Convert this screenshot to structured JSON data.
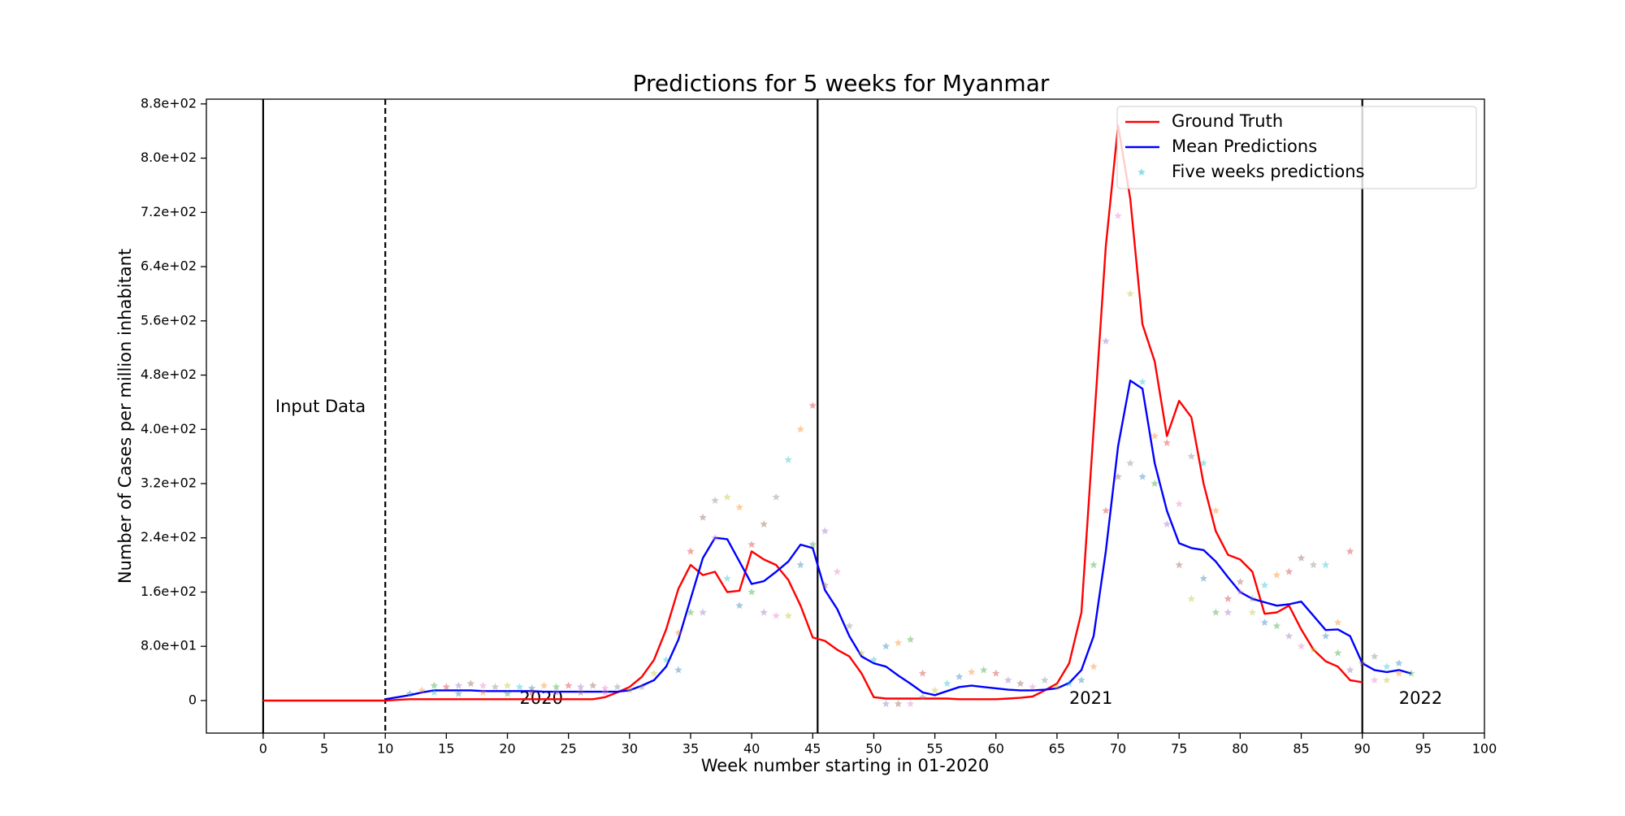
{
  "chart_data": {
    "type": "line",
    "title": "Predictions for 5 weeks for Myanmar",
    "x_label": "Week number starting in 01-2020",
    "y_label": "Number of Cases per million inhabitant",
    "xlim": [
      -4.65,
      100
    ],
    "ylim": [
      -48,
      887
    ],
    "xticks": [
      0,
      5,
      10,
      15,
      20,
      25,
      30,
      35,
      40,
      45,
      50,
      55,
      60,
      65,
      70,
      75,
      80,
      85,
      90,
      95,
      100
    ],
    "yticks": [
      0,
      {
        "value": 80,
        "label": "8.0e+01"
      },
      {
        "value": 160,
        "label": "1.6e+02"
      },
      {
        "value": 240,
        "label": "2.4e+02"
      },
      {
        "value": 320,
        "label": "3.2e+02"
      },
      {
        "value": 400,
        "label": "4.0e+02"
      },
      {
        "value": 480,
        "label": "4.8e+02"
      },
      {
        "value": 560,
        "label": "5.6e+02"
      },
      {
        "value": 640,
        "label": "6.4e+02"
      },
      {
        "value": 720,
        "label": "7.2e+02"
      },
      {
        "value": 800,
        "label": "8.0e+02"
      },
      {
        "value": 880,
        "label": "8.8e+02"
      }
    ],
    "vlines": [
      {
        "x": 0,
        "style": "solid"
      },
      {
        "x": 10,
        "style": "dashed"
      },
      {
        "x": 45.4,
        "style": "solid"
      },
      {
        "x": 90,
        "style": "solid"
      }
    ],
    "annotations": [
      "Input Data",
      "2020",
      "2021",
      "2022"
    ],
    "legend": "upper right",
    "series": [
      {
        "name": "Ground Truth",
        "color": "#ff0000",
        "x": [
          0,
          1,
          2,
          3,
          4,
          5,
          6,
          7,
          8,
          9,
          10,
          11,
          12,
          13,
          14,
          15,
          16,
          17,
          18,
          19,
          20,
          21,
          22,
          23,
          24,
          25,
          26,
          27,
          28,
          29,
          30,
          31,
          32,
          33,
          34,
          35,
          36,
          37,
          38,
          39,
          40,
          41,
          42,
          43,
          44,
          45,
          46,
          47,
          48,
          49,
          50,
          51,
          52,
          53,
          54,
          55,
          56,
          57,
          58,
          59,
          60,
          61,
          62,
          63,
          64,
          65,
          66,
          67,
          68,
          69,
          70,
          71,
          72,
          73,
          74,
          75,
          76,
          77,
          78,
          79,
          80,
          81,
          82,
          83,
          84,
          85,
          86,
          87,
          88,
          89,
          90
        ],
        "values": [
          0,
          0,
          0,
          0,
          0,
          0,
          0,
          0,
          0,
          0,
          0,
          1,
          2,
          2,
          2,
          2,
          2,
          2,
          2,
          2,
          2,
          2,
          2,
          2,
          2,
          2,
          2,
          2,
          5,
          12,
          20,
          35,
          60,
          105,
          165,
          200,
          185,
          190,
          160,
          162,
          220,
          208,
          200,
          178,
          140,
          93,
          88,
          75,
          65,
          40,
          5,
          3,
          3,
          3,
          3,
          3,
          3,
          2,
          2,
          2,
          2,
          3,
          4,
          6,
          15,
          25,
          55,
          130,
          400,
          670,
          848,
          740,
          555,
          500,
          390,
          442,
          418,
          320,
          250,
          215,
          208,
          190,
          128,
          130,
          140,
          105,
          75,
          58,
          50,
          30,
          27
        ]
      },
      {
        "name": "Mean Predictions",
        "color": "#0000ff",
        "x": [
          10,
          11,
          12,
          13,
          14,
          15,
          16,
          17,
          18,
          19,
          20,
          21,
          22,
          23,
          24,
          25,
          26,
          27,
          28,
          29,
          30,
          31,
          32,
          33,
          34,
          35,
          36,
          37,
          38,
          39,
          40,
          41,
          42,
          43,
          44,
          45,
          46,
          47,
          48,
          49,
          50,
          51,
          52,
          53,
          54,
          55,
          56,
          57,
          58,
          59,
          60,
          61,
          62,
          63,
          64,
          65,
          66,
          67,
          68,
          69,
          70,
          71,
          72,
          73,
          74,
          75,
          76,
          77,
          78,
          79,
          80,
          81,
          82,
          83,
          84,
          85,
          86,
          87,
          88,
          89,
          90,
          91,
          92,
          93,
          94
        ],
        "values": [
          2,
          5,
          8,
          12,
          15,
          15,
          15,
          15,
          14,
          14,
          14,
          14,
          14,
          13,
          13,
          13,
          13,
          13,
          13,
          13,
          15,
          22,
          30,
          50,
          90,
          150,
          210,
          240,
          238,
          205,
          172,
          176,
          190,
          205,
          230,
          225,
          163,
          135,
          95,
          65,
          55,
          50,
          37,
          25,
          12,
          8,
          14,
          20,
          22,
          20,
          18,
          16,
          15,
          15,
          16,
          18,
          26,
          45,
          95,
          220,
          375,
          472,
          460,
          350,
          280,
          232,
          225,
          222,
          205,
          182,
          160,
          150,
          145,
          140,
          142,
          146,
          125,
          104,
          105,
          95,
          55,
          45,
          42,
          45,
          40
        ]
      },
      {
        "name": "Five weeks predictions",
        "type": "scatter",
        "color": "#17becf",
        "point_colors": [
          "#1f77b4",
          "#ff7f0e",
          "#2ca02c",
          "#d62728",
          "#9467bd",
          "#8c564b",
          "#e377c2",
          "#7f7f7f",
          "#bcbd22",
          "#17becf"
        ],
        "x": [
          12,
          13,
          14,
          15,
          16,
          17,
          18,
          19,
          20,
          21,
          22,
          23,
          24,
          25,
          26,
          27,
          28,
          29,
          30,
          14,
          16,
          18,
          20,
          22,
          24,
          26,
          28,
          31,
          32,
          33,
          34,
          34,
          35,
          35,
          36,
          36,
          37,
          37,
          38,
          38,
          39,
          39,
          40,
          40,
          41,
          41,
          42,
          42,
          43,
          43,
          44,
          44,
          45,
          45,
          46,
          46,
          47,
          48,
          49,
          50,
          51,
          52,
          53,
          54,
          51,
          52,
          53,
          54,
          55,
          56,
          57,
          58,
          59,
          60,
          61,
          62,
          63,
          64,
          65,
          66,
          67,
          68,
          68,
          69,
          69,
          70,
          70,
          71,
          71,
          72,
          72,
          73,
          73,
          74,
          74,
          75,
          75,
          76,
          76,
          77,
          77,
          78,
          78,
          79,
          79,
          80,
          80,
          81,
          81,
          82,
          82,
          83,
          83,
          84,
          84,
          85,
          85,
          86,
          86,
          87,
          87,
          88,
          88,
          89,
          89,
          90,
          91,
          91,
          92,
          92,
          93,
          93,
          94
        ],
        "values": [
          10,
          15,
          22,
          20,
          22,
          25,
          22,
          20,
          22,
          20,
          18,
          22,
          20,
          22,
          20,
          22,
          18,
          20,
          15,
          12,
          10,
          12,
          10,
          12,
          12,
          12,
          12,
          20,
          40,
          60,
          45,
          100,
          130,
          220,
          130,
          270,
          240,
          295,
          300,
          180,
          140,
          285,
          160,
          230,
          130,
          260,
          125,
          300,
          125,
          355,
          200,
          400,
          230,
          435,
          250,
          170,
          190,
          110,
          70,
          60,
          80,
          85,
          90,
          40,
          -5,
          -5,
          -5,
          5,
          15,
          25,
          35,
          42,
          45,
          40,
          30,
          25,
          20,
          30,
          20,
          25,
          30,
          50,
          200,
          280,
          530,
          330,
          715,
          350,
          600,
          470,
          330,
          390,
          320,
          380,
          260,
          200,
          290,
          360,
          150,
          350,
          180,
          280,
          130,
          150,
          130,
          175,
          160,
          150,
          130,
          170,
          115,
          185,
          110,
          190,
          95,
          210,
          80,
          200,
          75,
          200,
          95,
          115,
          70,
          220,
          45,
          55,
          30,
          65,
          30,
          50,
          55,
          40,
          40
        ]
      }
    ]
  }
}
